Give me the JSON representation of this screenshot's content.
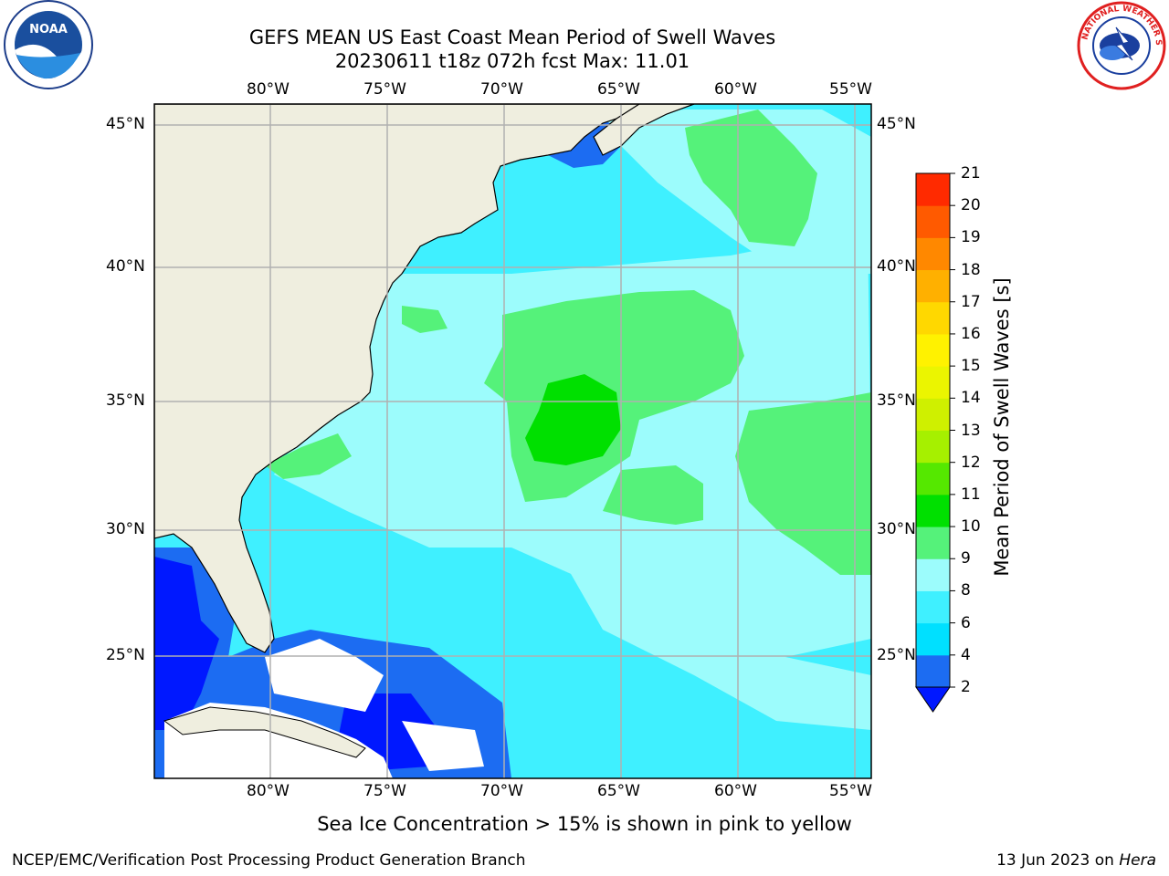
{
  "title": {
    "line1": "GEFS MEAN US East Coast Mean Period of Swell Waves",
    "line2": "20230611 t18z 072h fcst   Max: 11.01"
  },
  "logos": {
    "left": {
      "name": "noaa-logo",
      "text": "NOAA"
    },
    "right": {
      "name": "nws-logo",
      "text": "NATIONAL WEATHER SERVICE"
    }
  },
  "map": {
    "lon_labels": [
      "80°W",
      "75°W",
      "70°W",
      "65°W",
      "60°W",
      "55°W"
    ],
    "lat_labels": [
      "45°N",
      "40°N",
      "35°N",
      "30°N",
      "25°N"
    ],
    "land_color": "#efeedf",
    "grid_color": "#b0b0b0"
  },
  "colorbar": {
    "label": "Mean Period of Swell Waves [s]",
    "ticks": [
      "2",
      "4",
      "6",
      "8",
      "9",
      "10",
      "11",
      "12",
      "13",
      "14",
      "15",
      "16",
      "17",
      "18",
      "19",
      "20",
      "21"
    ],
    "colors": [
      "#1c6cf2",
      "#00e0ff",
      "#3ff0ff",
      "#9cfcfc",
      "#55f27a",
      "#00e000",
      "#55e800",
      "#a6f000",
      "#cff000",
      "#ebf500",
      "#fff200",
      "#ffd800",
      "#ffb000",
      "#ff8800",
      "#ff5a00",
      "#ff2a00"
    ],
    "under_color": "#0018ff"
  },
  "note": "Sea Ice Concentration > 15% is shown in pink to yellow",
  "footer": {
    "left": "NCEP/EMC/Verification Post Processing Product Generation Branch",
    "right_prefix": "13 Jun 2023 on ",
    "right_machine": "Hera"
  }
}
